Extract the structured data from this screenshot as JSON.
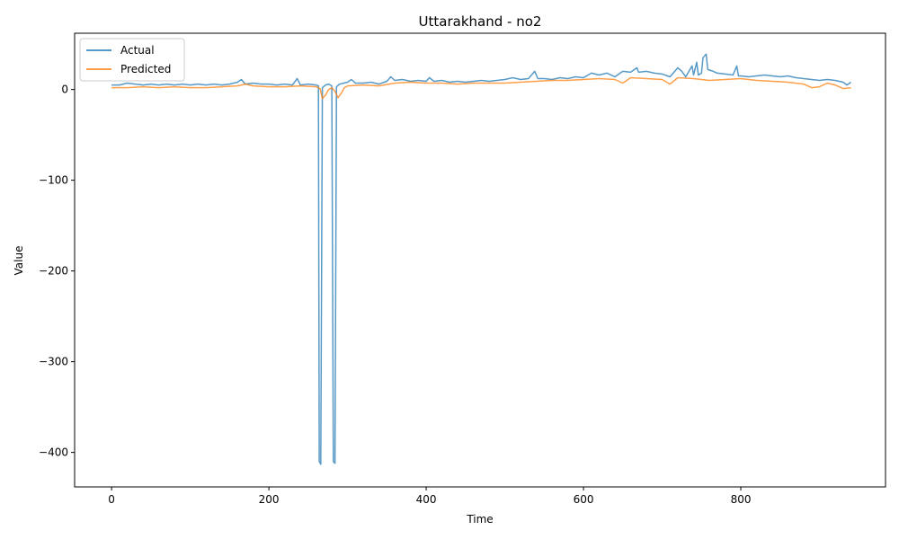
{
  "chart_data": {
    "type": "line",
    "title": "Uttarakhand - no2",
    "xlabel": "Time",
    "ylabel": "Value",
    "xlim": [
      -47,
      984
    ],
    "ylim": [
      -438,
      62
    ],
    "xticks": [
      0,
      200,
      400,
      600,
      800
    ],
    "yticks": [
      0,
      -100,
      -200,
      -300,
      -400
    ],
    "ytick_labels": [
      "0",
      "−100",
      "−200",
      "−300",
      "−400"
    ],
    "grid": false,
    "legend_position": "top-left",
    "series": [
      {
        "name": "Actual",
        "color": "#1f77b4",
        "points": [
          [
            0,
            5
          ],
          [
            10,
            5
          ],
          [
            20,
            7
          ],
          [
            30,
            6
          ],
          [
            40,
            5
          ],
          [
            50,
            6
          ],
          [
            60,
            5
          ],
          [
            70,
            6
          ],
          [
            80,
            5
          ],
          [
            90,
            6
          ],
          [
            100,
            5
          ],
          [
            110,
            6
          ],
          [
            120,
            5
          ],
          [
            130,
            6
          ],
          [
            140,
            5
          ],
          [
            150,
            6
          ],
          [
            160,
            8
          ],
          [
            165,
            11
          ],
          [
            170,
            6
          ],
          [
            180,
            7
          ],
          [
            190,
            6
          ],
          [
            200,
            6
          ],
          [
            210,
            5
          ],
          [
            220,
            6
          ],
          [
            230,
            5
          ],
          [
            236,
            12
          ],
          [
            240,
            5
          ],
          [
            250,
            6
          ],
          [
            260,
            5
          ],
          [
            263,
            4
          ],
          [
            264,
            -410
          ],
          [
            266,
            -413
          ],
          [
            268,
            2
          ],
          [
            272,
            5
          ],
          [
            276,
            6
          ],
          [
            280,
            4
          ],
          [
            282,
            -410
          ],
          [
            284,
            -412
          ],
          [
            286,
            3
          ],
          [
            290,
            6
          ],
          [
            300,
            8
          ],
          [
            305,
            11
          ],
          [
            310,
            7
          ],
          [
            320,
            7
          ],
          [
            330,
            8
          ],
          [
            340,
            6
          ],
          [
            350,
            9
          ],
          [
            355,
            14
          ],
          [
            360,
            10
          ],
          [
            370,
            11
          ],
          [
            380,
            9
          ],
          [
            390,
            10
          ],
          [
            400,
            9
          ],
          [
            404,
            13
          ],
          [
            410,
            9
          ],
          [
            420,
            10
          ],
          [
            430,
            8
          ],
          [
            440,
            9
          ],
          [
            450,
            8
          ],
          [
            460,
            9
          ],
          [
            470,
            10
          ],
          [
            480,
            9
          ],
          [
            490,
            10
          ],
          [
            500,
            11
          ],
          [
            510,
            13
          ],
          [
            520,
            11
          ],
          [
            530,
            12
          ],
          [
            538,
            20
          ],
          [
            542,
            12
          ],
          [
            550,
            12
          ],
          [
            560,
            11
          ],
          [
            570,
            13
          ],
          [
            580,
            12
          ],
          [
            590,
            14
          ],
          [
            600,
            13
          ],
          [
            610,
            18
          ],
          [
            620,
            16
          ],
          [
            630,
            18
          ],
          [
            640,
            14
          ],
          [
            650,
            20
          ],
          [
            660,
            19
          ],
          [
            668,
            24
          ],
          [
            670,
            19
          ],
          [
            680,
            20
          ],
          [
            690,
            18
          ],
          [
            700,
            17
          ],
          [
            710,
            14
          ],
          [
            720,
            24
          ],
          [
            725,
            20
          ],
          [
            730,
            14
          ],
          [
            738,
            26
          ],
          [
            740,
            16
          ],
          [
            744,
            30
          ],
          [
            746,
            16
          ],
          [
            750,
            18
          ],
          [
            752,
            35
          ],
          [
            756,
            39
          ],
          [
            758,
            22
          ],
          [
            765,
            20
          ],
          [
            770,
            18
          ],
          [
            780,
            17
          ],
          [
            790,
            16
          ],
          [
            795,
            26
          ],
          [
            797,
            15
          ],
          [
            800,
            15
          ],
          [
            810,
            14
          ],
          [
            820,
            15
          ],
          [
            830,
            16
          ],
          [
            840,
            15
          ],
          [
            850,
            14
          ],
          [
            860,
            15
          ],
          [
            870,
            13
          ],
          [
            880,
            12
          ],
          [
            890,
            11
          ],
          [
            900,
            10
          ],
          [
            910,
            11
          ],
          [
            920,
            10
          ],
          [
            930,
            8
          ],
          [
            935,
            5
          ],
          [
            940,
            8
          ]
        ]
      },
      {
        "name": "Predicted",
        "color": "#ff7f0e",
        "points": [
          [
            0,
            2
          ],
          [
            20,
            2
          ],
          [
            40,
            3
          ],
          [
            60,
            2
          ],
          [
            80,
            3
          ],
          [
            100,
            2
          ],
          [
            120,
            2
          ],
          [
            140,
            3
          ],
          [
            160,
            4
          ],
          [
            170,
            6
          ],
          [
            180,
            4
          ],
          [
            200,
            3
          ],
          [
            220,
            3
          ],
          [
            240,
            4
          ],
          [
            260,
            3
          ],
          [
            265,
            1
          ],
          [
            268,
            -10
          ],
          [
            272,
            -6
          ],
          [
            276,
            0
          ],
          [
            280,
            2
          ],
          [
            284,
            -2
          ],
          [
            288,
            -9
          ],
          [
            292,
            -4
          ],
          [
            296,
            2
          ],
          [
            300,
            4
          ],
          [
            320,
            5
          ],
          [
            340,
            4
          ],
          [
            360,
            7
          ],
          [
            380,
            8
          ],
          [
            400,
            7
          ],
          [
            420,
            7
          ],
          [
            440,
            6
          ],
          [
            460,
            7
          ],
          [
            480,
            7
          ],
          [
            500,
            7
          ],
          [
            520,
            8
          ],
          [
            540,
            9
          ],
          [
            560,
            10
          ],
          [
            580,
            10
          ],
          [
            600,
            11
          ],
          [
            620,
            12
          ],
          [
            640,
            11
          ],
          [
            650,
            7
          ],
          [
            660,
            13
          ],
          [
            680,
            12
          ],
          [
            700,
            11
          ],
          [
            710,
            6
          ],
          [
            720,
            13
          ],
          [
            740,
            12
          ],
          [
            760,
            10
          ],
          [
            780,
            11
          ],
          [
            800,
            12
          ],
          [
            820,
            10
          ],
          [
            840,
            9
          ],
          [
            860,
            8
          ],
          [
            880,
            6
          ],
          [
            890,
            2
          ],
          [
            900,
            3
          ],
          [
            910,
            7
          ],
          [
            920,
            5
          ],
          [
            930,
            1
          ],
          [
            940,
            2
          ]
        ]
      }
    ]
  }
}
